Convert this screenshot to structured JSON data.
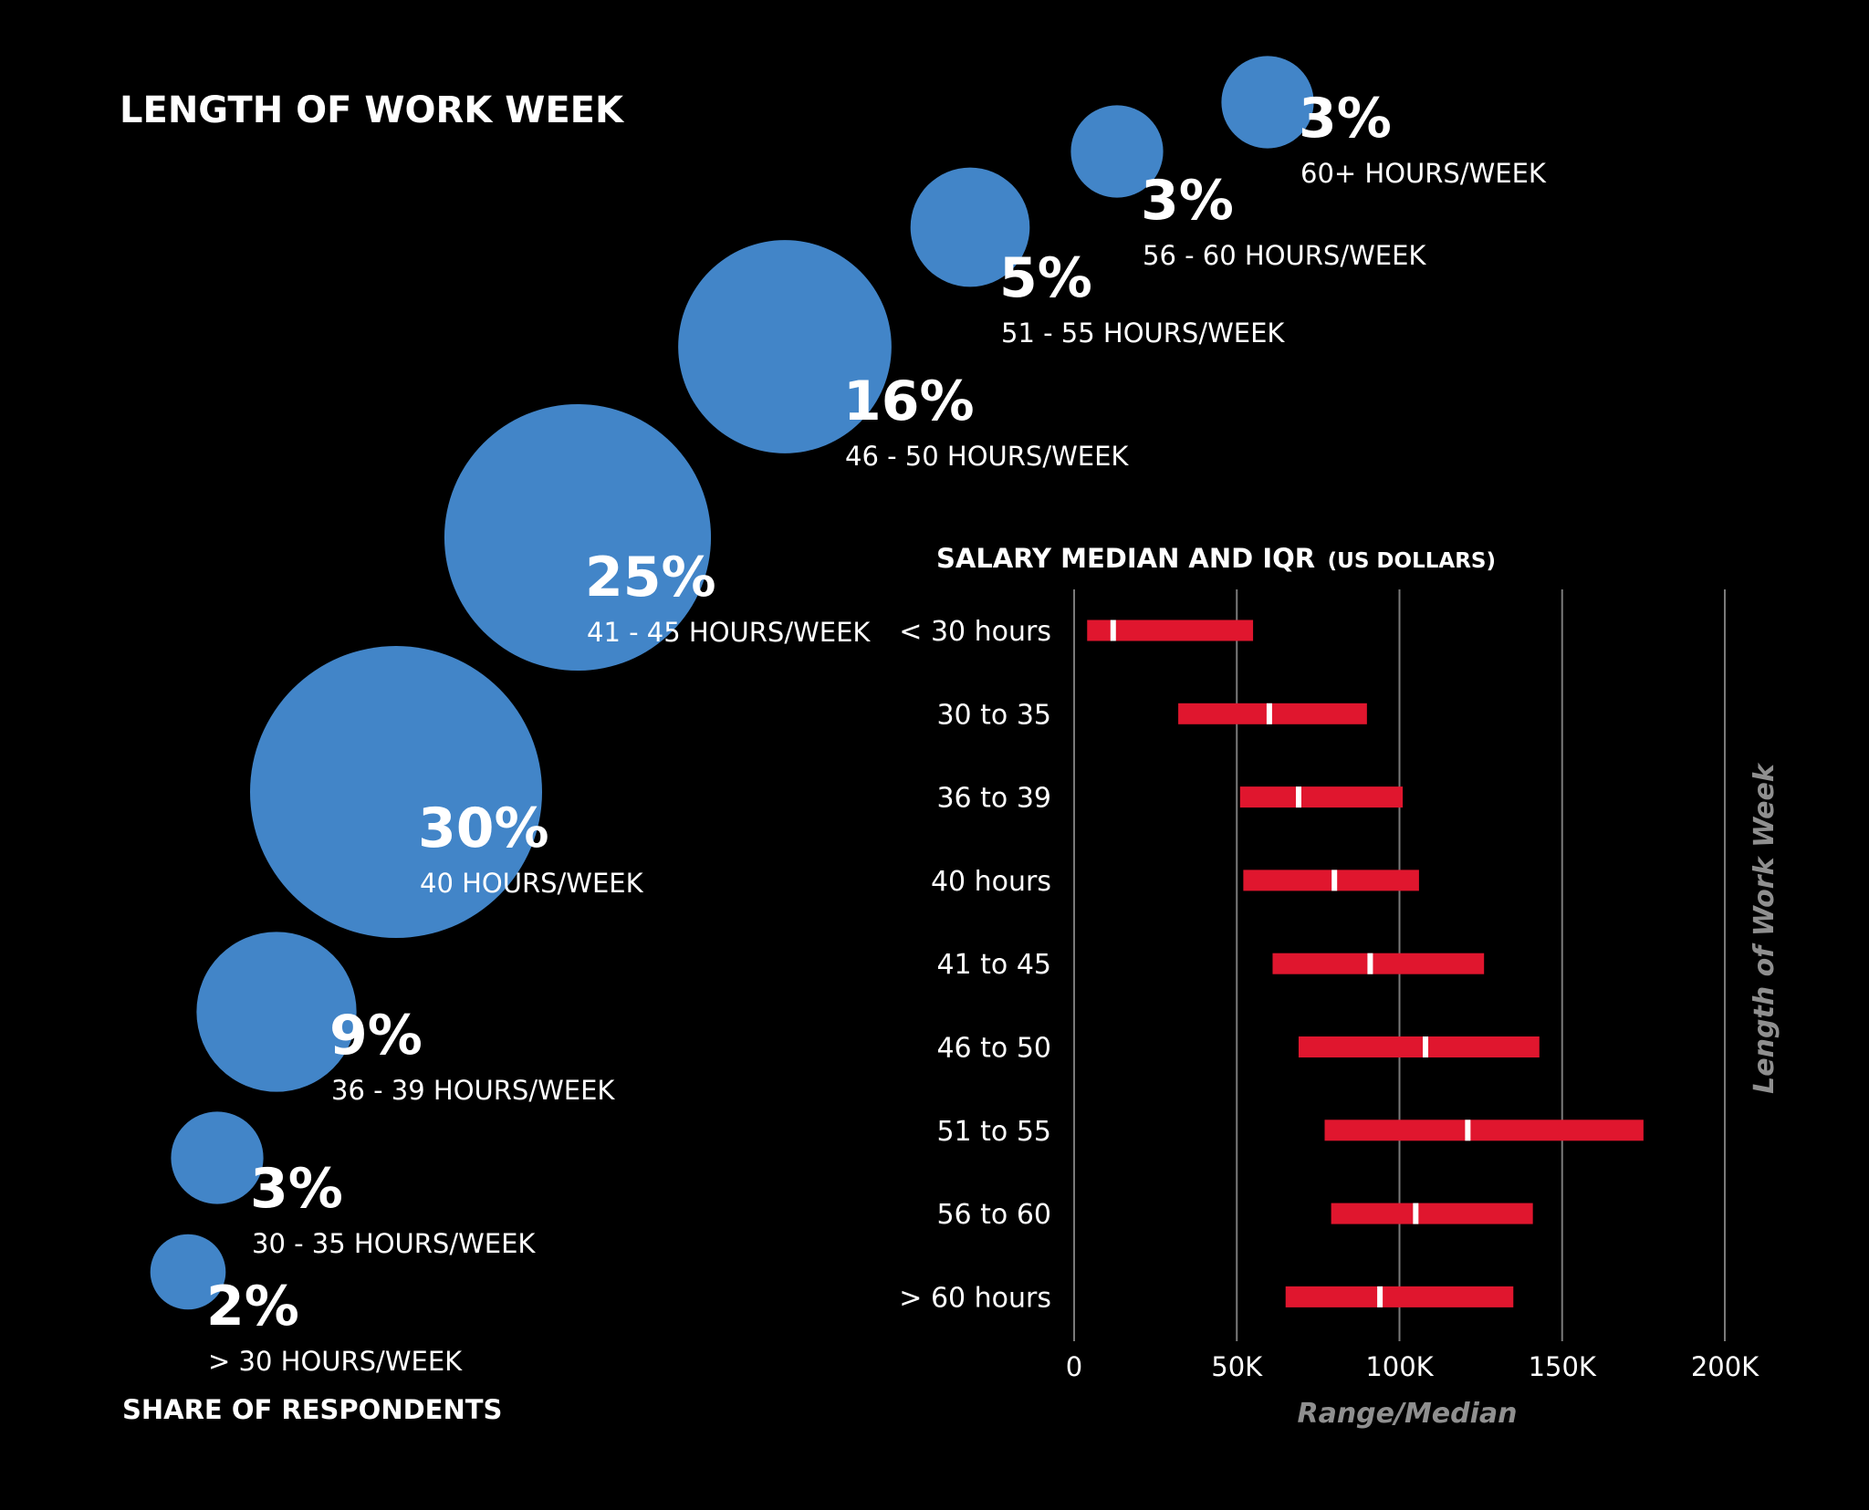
{
  "bubble_chart": {
    "title": "LENGTH OF WORK WEEK",
    "footer": "SHARE OF RESPONDENTS",
    "color": "#4285c8"
  },
  "iqr_chart": {
    "title_main": "SALARY MEDIAN AND IQR",
    "title_sub": "(US DOLLARS)",
    "xlabel": "Range/Median",
    "ylabel": "Length of Work Week",
    "bar_color": "#e0162e",
    "median_color": "#ffffff",
    "grid_color": "#7a7a7a"
  },
  "chart_data": [
    {
      "type": "bubble",
      "title": "LENGTH OF WORK WEEK",
      "value_label": "SHARE OF RESPONDENTS",
      "points": [
        {
          "value": 2,
          "label": "2%",
          "category": "> 30 HOURS/WEEK"
        },
        {
          "value": 3,
          "label": "3%",
          "category": "30 - 35 HOURS/WEEK"
        },
        {
          "value": 9,
          "label": "9%",
          "category": "36 - 39 HOURS/WEEK"
        },
        {
          "value": 30,
          "label": "30%",
          "category": "40 HOURS/WEEK"
        },
        {
          "value": 25,
          "label": "25%",
          "category": "41 - 45 HOURS/WEEK"
        },
        {
          "value": 16,
          "label": "16%",
          "category": "46 - 50 HOURS/WEEK"
        },
        {
          "value": 5,
          "label": "5%",
          "category": "51 - 55 HOURS/WEEK"
        },
        {
          "value": 3,
          "label": "3%",
          "category": "56 - 60 HOURS/WEEK"
        },
        {
          "value": 3,
          "label": "3%",
          "category": "60+ HOURS/WEEK"
        }
      ]
    },
    {
      "type": "range-bar",
      "title": "SALARY MEDIAN AND IQR (US DOLLARS)",
      "xlabel": "Range/Median",
      "ylabel": "Length of Work Week",
      "xlim": [
        0,
        200000
      ],
      "xticks": [
        0,
        50000,
        100000,
        150000,
        200000
      ],
      "xtick_labels": [
        "0",
        "50K",
        "100K",
        "150K",
        "200K"
      ],
      "grid": true,
      "categories": [
        "< 30 hours",
        "30 to 35",
        "36 to 39",
        "40 hours",
        "41 to 45",
        "46 to 50",
        "51 to 55",
        "56 to 60",
        "> 60 hours"
      ],
      "q1": [
        4000,
        32000,
        51000,
        52000,
        61000,
        69000,
        77000,
        79000,
        65000
      ],
      "median": [
        12000,
        60000,
        69000,
        80000,
        91000,
        108000,
        121000,
        105000,
        94000
      ],
      "q3": [
        55000,
        90000,
        101000,
        106000,
        126000,
        143000,
        175000,
        141000,
        135000
      ]
    }
  ]
}
